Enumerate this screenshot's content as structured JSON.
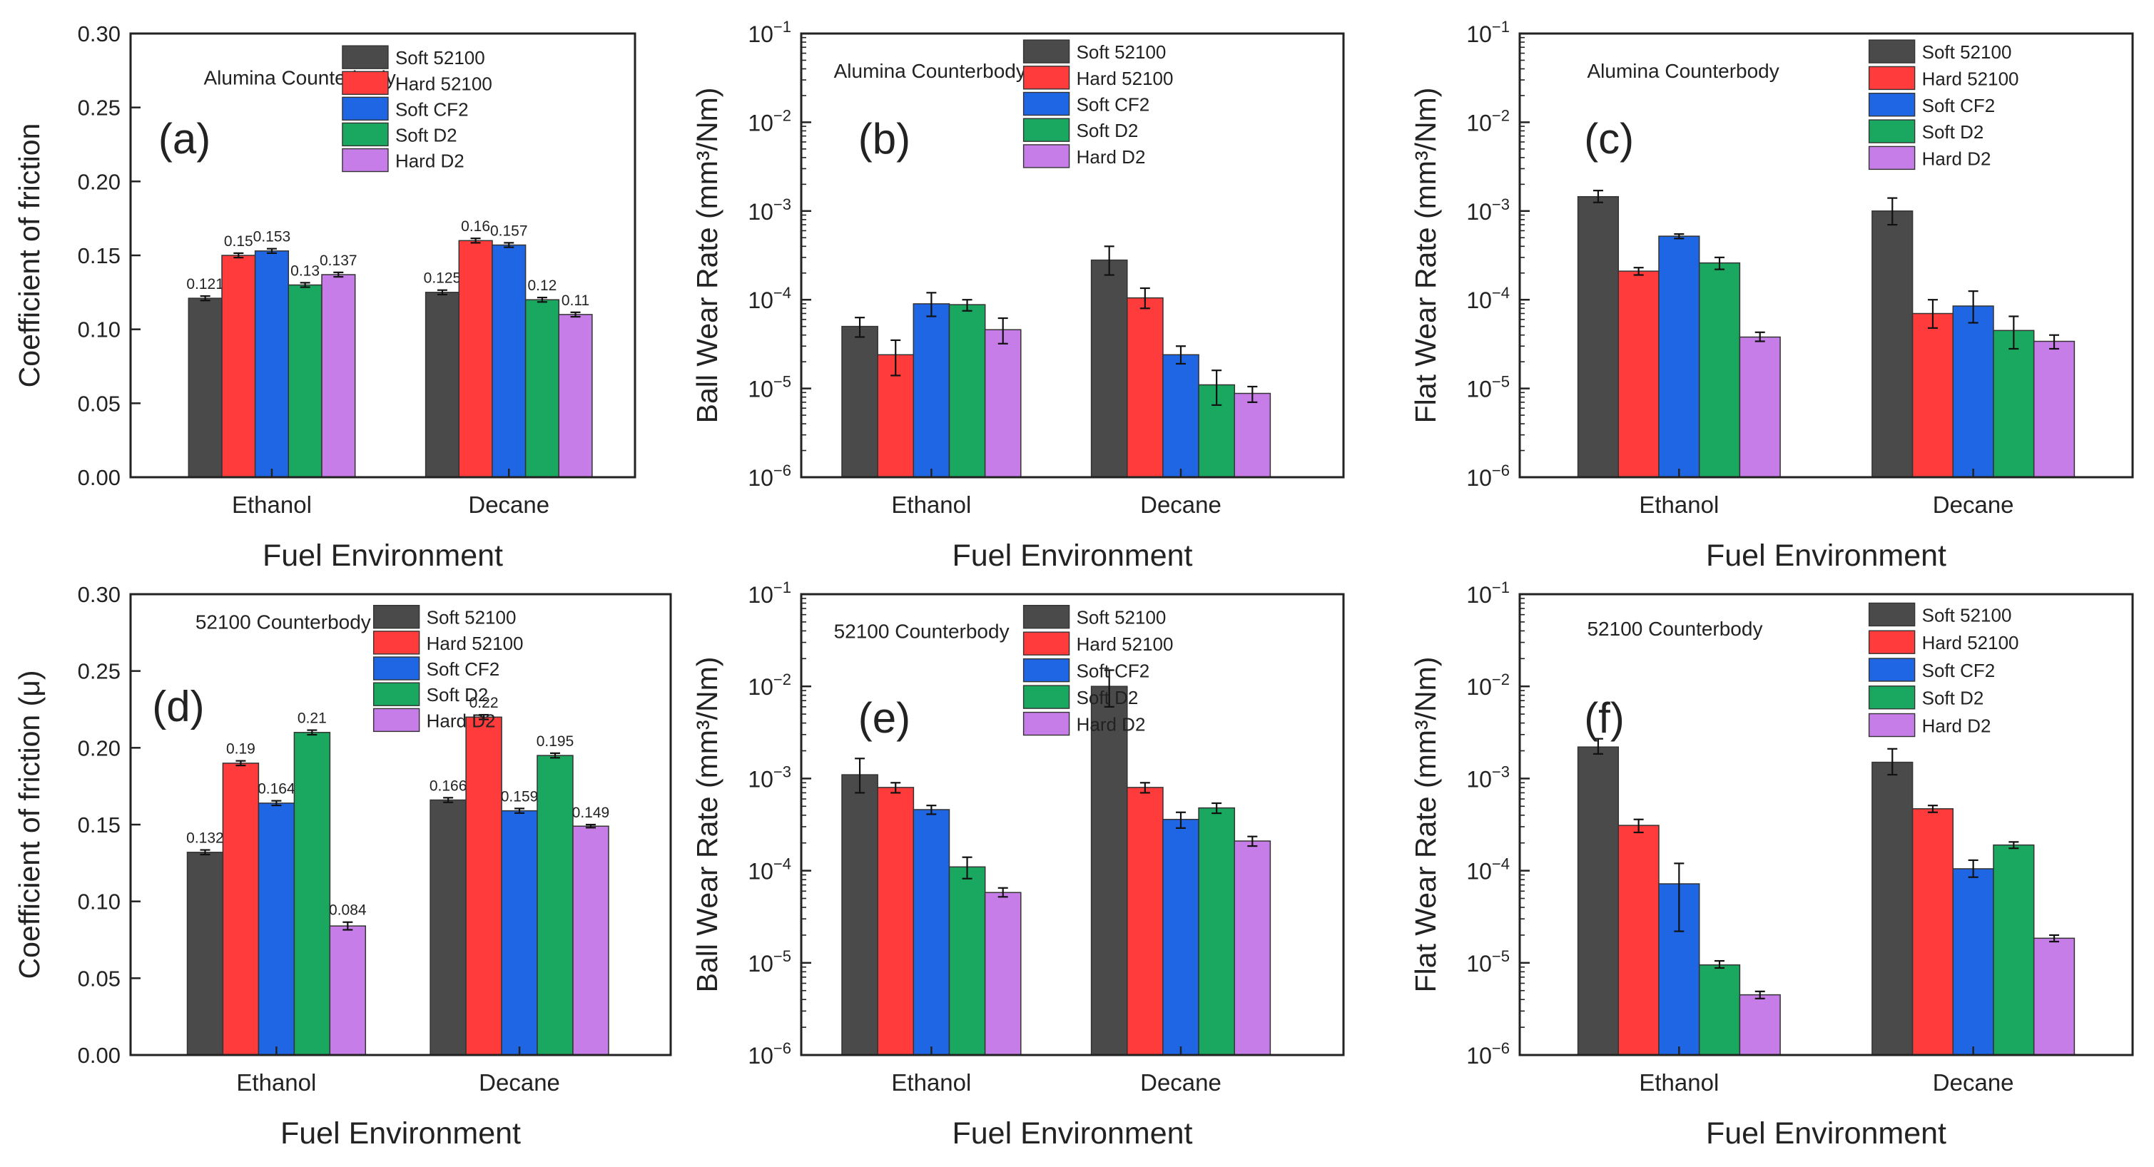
{
  "colors": {
    "series": [
      "#4a4a4a",
      "#ff3b3b",
      "#1f66e5",
      "#1aa860",
      "#c77de8"
    ],
    "axis": "#222222"
  },
  "chart_data": [
    {
      "id": "a",
      "type": "bar",
      "scale": "linear",
      "panel_label": "(a)",
      "title": "Alumina Counterbody",
      "ylabel": "Coefficient of friction",
      "xlabel": "Fuel Environment",
      "ylim": [
        0,
        0.3
      ],
      "yticks": [
        "0.00",
        "0.05",
        "0.10",
        "0.15",
        "0.20",
        "0.25",
        "0.30"
      ],
      "categories": [
        "Ethanol",
        "Decane"
      ],
      "series": [
        {
          "name": "Soft 52100",
          "values": [
            0.121,
            0.125
          ],
          "err": [
            0.0015,
            0.0015
          ],
          "labels": [
            "0.121",
            "0.125"
          ]
        },
        {
          "name": "Hard 52100",
          "values": [
            0.15,
            0.16
          ],
          "err": [
            0.0015,
            0.0015
          ],
          "labels": [
            "0.15",
            "0.16"
          ]
        },
        {
          "name": "Soft CF2",
          "values": [
            0.153,
            0.157
          ],
          "err": [
            0.0015,
            0.0015
          ],
          "labels": [
            "0.153",
            "0.157"
          ]
        },
        {
          "name": "Soft D2",
          "values": [
            0.13,
            0.12
          ],
          "err": [
            0.0015,
            0.0015
          ],
          "labels": [
            "0.13",
            "0.12"
          ]
        },
        {
          "name": "Hard D2",
          "values": [
            0.137,
            0.11
          ],
          "err": [
            0.0015,
            0.0015
          ],
          "labels": [
            "0.137",
            "0.11"
          ]
        }
      ]
    },
    {
      "id": "b",
      "type": "bar",
      "scale": "log",
      "panel_label": "(b)",
      "title": "Alumina Counterbody",
      "ylabel": "Ball Wear Rate (mm³/Nm)",
      "xlabel": "Fuel Environment",
      "ylim_exp": [
        -6,
        -1
      ],
      "categories": [
        "Ethanol",
        "Decane"
      ],
      "series": [
        {
          "name": "Soft 52100",
          "values": [
            5e-05,
            0.00028
          ],
          "err_lo": [
            3.8e-05,
            0.00019
          ],
          "err_hi": [
            6.3e-05,
            0.0004
          ]
        },
        {
          "name": "Hard 52100",
          "values": [
            2.4e-05,
            0.000105
          ],
          "err_lo": [
            1.4e-05,
            8e-05
          ],
          "err_hi": [
            3.5e-05,
            0.000135
          ]
        },
        {
          "name": "Soft CF2",
          "values": [
            9e-05,
            2.4e-05
          ],
          "err_lo": [
            6.5e-05,
            1.9e-05
          ],
          "err_hi": [
            0.00012,
            3e-05
          ]
        },
        {
          "name": "Soft D2",
          "values": [
            8.8e-05,
            1.1e-05
          ],
          "err_lo": [
            7.5e-05,
            6.5e-06
          ],
          "err_hi": [
            0.0001,
            1.6e-05
          ]
        },
        {
          "name": "Hard D2",
          "values": [
            4.6e-05,
            8.8e-06
          ],
          "err_lo": [
            3.2e-05,
            7e-06
          ],
          "err_hi": [
            6.2e-05,
            1.05e-05
          ]
        }
      ]
    },
    {
      "id": "c",
      "type": "bar",
      "scale": "log",
      "panel_label": "(c)",
      "title": "Alumina Counterbody",
      "ylabel": "Flat Wear Rate (mm³/Nm)",
      "xlabel": "Fuel Environment",
      "ylim_exp": [
        -6,
        -1
      ],
      "categories": [
        "Ethanol",
        "Decane"
      ],
      "series": [
        {
          "name": "Soft 52100",
          "values": [
            0.00145,
            0.001
          ],
          "err_lo": [
            0.00125,
            0.0007
          ],
          "err_hi": [
            0.0017,
            0.0014
          ]
        },
        {
          "name": "Hard 52100",
          "values": [
            0.00021,
            7e-05
          ],
          "err_lo": [
            0.00019,
            4.8e-05
          ],
          "err_hi": [
            0.00023,
            0.0001
          ]
        },
        {
          "name": "Soft CF2",
          "values": [
            0.00052,
            8.5e-05
          ],
          "err_lo": [
            0.00049,
            5.5e-05
          ],
          "err_hi": [
            0.00055,
            0.000125
          ]
        },
        {
          "name": "Soft D2",
          "values": [
            0.00026,
            4.5e-05
          ],
          "err_lo": [
            0.00022,
            2.8e-05
          ],
          "err_hi": [
            0.0003,
            6.5e-05
          ]
        },
        {
          "name": "Hard D2",
          "values": [
            3.8e-05,
            3.4e-05
          ],
          "err_lo": [
            3.4e-05,
            2.8e-05
          ],
          "err_hi": [
            4.3e-05,
            4e-05
          ]
        }
      ]
    },
    {
      "id": "d",
      "type": "bar",
      "scale": "linear",
      "panel_label": "(d)",
      "title": "52100 Counterbody",
      "ylabel": "Coefficient of friction (μ)",
      "xlabel": "Fuel Environment",
      "ylim": [
        0,
        0.3
      ],
      "yticks": [
        "0.00",
        "0.05",
        "0.10",
        "0.15",
        "0.20",
        "0.25",
        "0.30"
      ],
      "categories": [
        "Ethanol",
        "Decane"
      ],
      "series": [
        {
          "name": "Soft 52100",
          "values": [
            0.132,
            0.166
          ],
          "err": [
            0.0015,
            0.0015
          ],
          "labels": [
            "0.132",
            "0.166"
          ]
        },
        {
          "name": "Hard 52100",
          "values": [
            0.19,
            0.22
          ],
          "err": [
            0.0015,
            0.0015
          ],
          "labels": [
            "0.19",
            "0.22"
          ]
        },
        {
          "name": "Soft CF2",
          "values": [
            0.164,
            0.159
          ],
          "err": [
            0.0015,
            0.0015
          ],
          "labels": [
            "0.164",
            "0.159"
          ]
        },
        {
          "name": "Soft D2",
          "values": [
            0.21,
            0.195
          ],
          "err": [
            0.0015,
            0.0015
          ],
          "labels": [
            "0.21",
            "0.195"
          ]
        },
        {
          "name": "Hard D2",
          "values": [
            0.084,
            0.149
          ],
          "err": [
            0.0025,
            0.001
          ],
          "labels": [
            "0.084",
            "0.149"
          ]
        }
      ]
    },
    {
      "id": "e",
      "type": "bar",
      "scale": "log",
      "panel_label": "(e)",
      "title": "52100 Counterbody",
      "ylabel": "Ball Wear Rate (mm³/Nm)",
      "xlabel": "Fuel Environment",
      "ylim_exp": [
        -6,
        -1
      ],
      "categories": [
        "Ethanol",
        "Decane"
      ],
      "series": [
        {
          "name": "Soft 52100",
          "values": [
            0.0011,
            0.01
          ],
          "err_lo": [
            0.0007,
            0.006
          ],
          "err_hi": [
            0.00165,
            0.015
          ]
        },
        {
          "name": "Hard 52100",
          "values": [
            0.0008,
            0.0008
          ],
          "err_lo": [
            0.0007,
            0.0007
          ],
          "err_hi": [
            0.0009,
            0.0009
          ]
        },
        {
          "name": "Soft CF2",
          "values": [
            0.00046,
            0.00036
          ],
          "err_lo": [
            0.00041,
            0.00029
          ],
          "err_hi": [
            0.00051,
            0.00043
          ]
        },
        {
          "name": "Soft D2",
          "values": [
            0.00011,
            0.00048
          ],
          "err_lo": [
            8.2e-05,
            0.00042
          ],
          "err_hi": [
            0.00014,
            0.00054
          ]
        },
        {
          "name": "Hard D2",
          "values": [
            5.8e-05,
            0.00021
          ],
          "err_lo": [
            5.2e-05,
            0.000185
          ],
          "err_hi": [
            6.5e-05,
            0.000235
          ]
        }
      ]
    },
    {
      "id": "f",
      "type": "bar",
      "scale": "log",
      "panel_label": "(f)",
      "title": "52100 Counterbody",
      "ylabel": "Flat Wear Rate (mm³/Nm)",
      "xlabel": "Fuel Environment",
      "ylim_exp": [
        -6,
        -1
      ],
      "categories": [
        "Ethanol",
        "Decane"
      ],
      "series": [
        {
          "name": "Soft 52100",
          "values": [
            0.0022,
            0.0015
          ],
          "err_lo": [
            0.00185,
            0.0011
          ],
          "err_hi": [
            0.0027,
            0.0021
          ]
        },
        {
          "name": "Hard 52100",
          "values": [
            0.00031,
            0.00047
          ],
          "err_lo": [
            0.00026,
            0.00043
          ],
          "err_hi": [
            0.00036,
            0.00051
          ]
        },
        {
          "name": "Soft CF2",
          "values": [
            7.2e-05,
            0.000105
          ],
          "err_lo": [
            2.2e-05,
            8.5e-05
          ],
          "err_hi": [
            0.00012,
            0.00013
          ]
        },
        {
          "name": "Soft D2",
          "values": [
            9.5e-06,
            0.00019
          ],
          "err_lo": [
            8.8e-06,
            0.000175
          ],
          "err_hi": [
            1.05e-05,
            0.000205
          ]
        },
        {
          "name": "Hard D2",
          "values": [
            4.5e-06,
            1.85e-05
          ],
          "err_lo": [
            4.1e-06,
            1.7e-05
          ],
          "err_hi": [
            4.9e-06,
            2e-05
          ]
        }
      ]
    }
  ]
}
